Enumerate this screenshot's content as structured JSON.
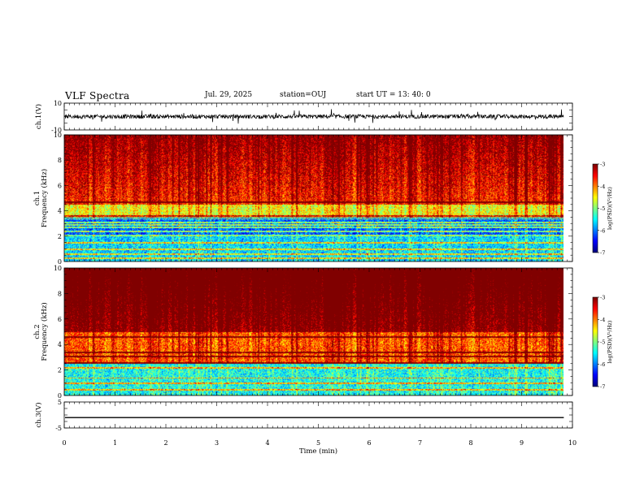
{
  "chart_data": {
    "type": "heatmap",
    "title": "VLF Spectra",
    "date": "Jul. 29, 2025",
    "station": "station=OUJ",
    "start_time": "start UT =  13: 40: 0",
    "x_axis": {
      "label": "Time (min)",
      "range": [
        0,
        10
      ],
      "ticks": [
        "0",
        "1",
        "2",
        "3",
        "4",
        "5",
        "6",
        "7",
        "8",
        "9",
        "10"
      ],
      "data_extent_min": 9.83
    },
    "panels": [
      {
        "name": "ch1-waveform",
        "type": "line",
        "ylabel": "ch.1(V)",
        "ylim": [
          -10,
          10
        ],
        "ticks": [
          "10",
          "-10"
        ],
        "baseline": 0,
        "noise_amplitude": 1.5,
        "spike_amplitude": 6
      },
      {
        "name": "ch1-spectrogram",
        "type": "heatmap",
        "ylabel": [
          "ch.1",
          "Frequency (kHz)"
        ],
        "ylim": [
          0,
          10
        ],
        "ticks": [
          "0",
          "2",
          "4",
          "6",
          "8",
          "10"
        ],
        "colorbar": {
          "label": "log(PSD)(V²/Hz)",
          "range": [
            -7,
            -3
          ],
          "ticks": [
            "-3",
            "-4",
            "-5",
            "-6",
            "-7"
          ]
        },
        "profile": {
          "quiet_band_khz": [
            2,
            3.5
          ],
          "active_above_khz": 4.5,
          "typical_level": -5.0
        },
        "line_frequencies_khz": [
          0.3,
          0.6,
          1.0,
          1.5,
          2.1,
          2.4,
          2.7,
          2.9,
          3.1,
          3.4,
          3.6,
          4.7
        ]
      },
      {
        "name": "ch2-spectrogram",
        "type": "heatmap",
        "ylabel": [
          "ch.2",
          "Frequency (kHz)"
        ],
        "ylim": [
          0,
          10
        ],
        "ticks": [
          "0",
          "2",
          "4",
          "6",
          "8",
          "10"
        ],
        "colorbar": {
          "label": "log(PSD)(V²/Hz)",
          "range": [
            -7,
            -3
          ],
          "ticks": [
            "-3",
            "-4",
            "-5",
            "-6",
            "-7"
          ]
        },
        "profile": {
          "quiet_band_khz": [
            0,
            2.5
          ],
          "active_above_khz": 5,
          "typical_level": -4.3
        },
        "line_frequencies_khz": [
          0.5,
          1.0,
          1.4,
          2.2,
          2.6,
          3.1,
          3.4,
          4.6
        ]
      },
      {
        "name": "ch3-waveform",
        "type": "line",
        "ylabel": "ch.3(V)",
        "ylim": [
          -5,
          5
        ],
        "ticks": [
          "5",
          "-5"
        ],
        "baseline": -1
      }
    ]
  }
}
